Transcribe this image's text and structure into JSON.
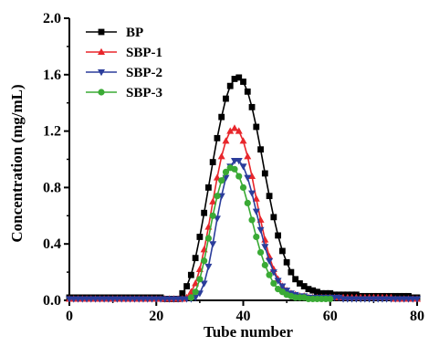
{
  "chart_data": {
    "type": "line",
    "xlabel": "Tube number",
    "ylabel": "Concentration (mg/mL)",
    "xlim": [
      0,
      80
    ],
    "ylim": [
      0,
      2.0
    ],
    "xticks": [
      "0",
      "20",
      "40",
      "60",
      "80"
    ],
    "yticks": [
      "0.0",
      "0.4",
      "0.8",
      "1.2",
      "1.6",
      "2.0"
    ],
    "grid": false,
    "legend_position": "top-left",
    "series": [
      {
        "name": "BP",
        "color": "#000000",
        "marker": "square",
        "x": [
          0,
          1,
          2,
          3,
          4,
          5,
          6,
          7,
          8,
          9,
          10,
          11,
          12,
          13,
          14,
          15,
          16,
          17,
          18,
          19,
          20,
          21,
          22,
          23,
          24,
          25,
          26,
          27,
          28,
          29,
          30,
          31,
          32,
          33,
          34,
          35,
          36,
          37,
          38,
          39,
          40,
          41,
          42,
          43,
          44,
          45,
          46,
          47,
          48,
          49,
          50,
          51,
          52,
          53,
          54,
          55,
          56,
          57,
          58,
          59,
          60,
          61,
          62,
          63,
          64,
          65,
          66,
          67,
          68,
          69,
          70,
          71,
          72,
          73,
          74,
          75,
          76,
          77,
          78,
          79,
          80
        ],
        "y": [
          0.02,
          0.02,
          0.02,
          0.02,
          0.02,
          0.02,
          0.02,
          0.02,
          0.02,
          0.02,
          0.02,
          0.02,
          0.02,
          0.02,
          0.02,
          0.02,
          0.02,
          0.02,
          0.02,
          0.02,
          0.02,
          0.02,
          0.01,
          0.01,
          0.01,
          0.01,
          0.05,
          0.1,
          0.18,
          0.3,
          0.45,
          0.62,
          0.8,
          0.98,
          1.15,
          1.3,
          1.43,
          1.52,
          1.57,
          1.58,
          1.55,
          1.48,
          1.37,
          1.23,
          1.07,
          0.9,
          0.74,
          0.59,
          0.46,
          0.35,
          0.27,
          0.2,
          0.15,
          0.12,
          0.1,
          0.08,
          0.07,
          0.06,
          0.05,
          0.05,
          0.05,
          0.04,
          0.04,
          0.04,
          0.04,
          0.04,
          0.04,
          0.03,
          0.03,
          0.03,
          0.03,
          0.03,
          0.03,
          0.03,
          0.03,
          0.03,
          0.03,
          0.03,
          0.03,
          0.02,
          0.02
        ]
      },
      {
        "name": "SBP-1",
        "color": "#e8262b",
        "marker": "triangle-up",
        "x": [
          0,
          1,
          2,
          3,
          4,
          5,
          6,
          7,
          8,
          9,
          10,
          11,
          12,
          13,
          14,
          15,
          16,
          17,
          18,
          19,
          20,
          21,
          22,
          23,
          24,
          25,
          26,
          27,
          28,
          29,
          30,
          31,
          32,
          33,
          34,
          35,
          36,
          37,
          38,
          39,
          40,
          41,
          42,
          43,
          44,
          45,
          46,
          47,
          48,
          49,
          50,
          51,
          52,
          53,
          54,
          55,
          56,
          57,
          58,
          59,
          60,
          61,
          62,
          63,
          64,
          65,
          66,
          67,
          68,
          69,
          70,
          71,
          72,
          73,
          74,
          75,
          76,
          77,
          78,
          79,
          80
        ],
        "y": [
          0.01,
          0.01,
          0.01,
          0.01,
          0.01,
          0.01,
          0.01,
          0.01,
          0.01,
          0.01,
          0.01,
          0.01,
          0.01,
          0.01,
          0.01,
          0.01,
          0.01,
          0.01,
          0.01,
          0.01,
          0.01,
          0.01,
          0.01,
          0.01,
          0.01,
          0.01,
          0.01,
          0.02,
          0.06,
          0.12,
          0.22,
          0.36,
          0.52,
          0.7,
          0.87,
          1.02,
          1.13,
          1.2,
          1.22,
          1.2,
          1.13,
          1.02,
          0.88,
          0.72,
          0.57,
          0.43,
          0.31,
          0.22,
          0.15,
          0.1,
          0.07,
          0.05,
          0.04,
          0.03,
          0.03,
          0.02,
          0.02,
          0.02,
          0.02,
          0.02,
          0.02,
          0.02,
          0.02,
          0.02,
          0.02,
          0.02,
          0.02,
          0.02,
          0.02,
          0.02,
          0.02,
          0.02,
          0.02,
          0.02,
          0.02,
          0.01,
          0.01,
          0.01,
          0.01,
          0.01,
          0.01
        ]
      },
      {
        "name": "SBP-2",
        "color": "#2b3d9b",
        "marker": "triangle-down",
        "x": [
          0,
          1,
          2,
          3,
          4,
          5,
          6,
          7,
          8,
          9,
          10,
          11,
          12,
          13,
          14,
          15,
          16,
          17,
          18,
          19,
          20,
          21,
          22,
          23,
          24,
          25,
          26,
          27,
          28,
          29,
          30,
          31,
          32,
          33,
          34,
          35,
          36,
          37,
          38,
          39,
          40,
          41,
          42,
          43,
          44,
          45,
          46,
          47,
          48,
          49,
          50,
          51,
          52,
          53,
          54,
          55,
          56,
          57,
          58,
          59,
          60,
          61,
          62,
          63,
          64,
          65,
          66,
          67,
          68,
          69,
          70,
          71,
          72,
          73,
          74,
          75,
          76,
          77,
          78,
          79,
          80
        ],
        "y": [
          0.01,
          0.01,
          0.01,
          0.01,
          0.01,
          0.01,
          0.01,
          0.01,
          0.01,
          0.01,
          0.01,
          0.01,
          0.01,
          0.01,
          0.01,
          0.01,
          0.01,
          0.01,
          0.01,
          0.01,
          0.01,
          0.01,
          0.01,
          0.01,
          0.01,
          0.01,
          0.01,
          0.01,
          0.01,
          0.02,
          0.05,
          0.12,
          0.24,
          0.4,
          0.58,
          0.74,
          0.87,
          0.95,
          0.99,
          0.99,
          0.95,
          0.87,
          0.76,
          0.63,
          0.5,
          0.38,
          0.28,
          0.2,
          0.14,
          0.1,
          0.07,
          0.05,
          0.04,
          0.03,
          0.03,
          0.02,
          0.02,
          0.02,
          0.02,
          0.02,
          0.02,
          0.02,
          0.02,
          0.01,
          0.01,
          0.01,
          0.01,
          0.01,
          0.01,
          0.01,
          0.01,
          0.01,
          0.01,
          0.01,
          0.01,
          0.01,
          0.01,
          0.01,
          0.01,
          0.01,
          0.01
        ]
      },
      {
        "name": "SBP-3",
        "color": "#3aaa35",
        "marker": "circle",
        "x": [
          28,
          29,
          30,
          31,
          32,
          33,
          34,
          35,
          36,
          37,
          38,
          39,
          40,
          41,
          42,
          43,
          44,
          45,
          46,
          47,
          48,
          49,
          50,
          51,
          52,
          53,
          54,
          55,
          56,
          57,
          58,
          59,
          60
        ],
        "y": [
          0.02,
          0.06,
          0.15,
          0.28,
          0.44,
          0.6,
          0.74,
          0.85,
          0.91,
          0.94,
          0.93,
          0.88,
          0.8,
          0.69,
          0.57,
          0.45,
          0.34,
          0.25,
          0.18,
          0.12,
          0.08,
          0.06,
          0.04,
          0.03,
          0.02,
          0.02,
          0.02,
          0.01,
          0.01,
          0.01,
          0.01,
          0.01,
          0.01
        ]
      }
    ]
  }
}
